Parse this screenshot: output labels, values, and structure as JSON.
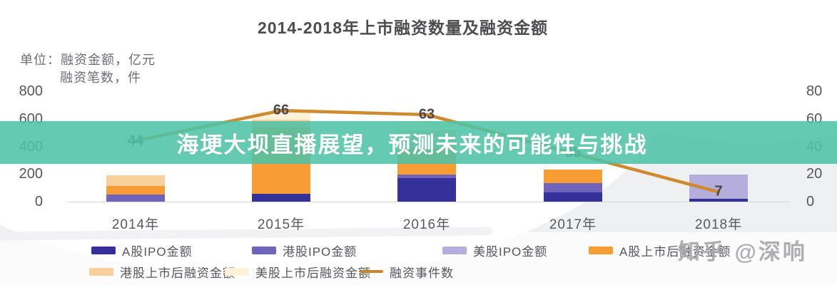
{
  "banner": {
    "text": "海埂大坝直播展望，预测未来的可能性与挑战",
    "bg_color": "#4ec3a6"
  },
  "watermark": {
    "text": "知乎 @深响"
  },
  "chart_data": {
    "type": "bar",
    "title": "2014-2018年上市融资数量及融资金额",
    "unit_line1": "单位：融资金额，亿元",
    "unit_line2": "融资笔数，件",
    "categories": [
      "2014年",
      "2015年",
      "2016年",
      "2017年",
      "2018年"
    ],
    "left_axis": {
      "ticks": [
        800,
        600,
        400,
        200,
        0
      ],
      "max": 800
    },
    "right_axis": {
      "ticks": [
        80,
        60,
        40,
        20,
        0
      ],
      "max": 80
    },
    "series": [
      {
        "name": "A股IPO金额",
        "color": "#35319b",
        "values": [
          0,
          55,
          170,
          65,
          20
        ]
      },
      {
        "name": "港股IPO金额",
        "color": "#6f63bb",
        "values": [
          50,
          0,
          25,
          70,
          0
        ]
      },
      {
        "name": "美股IPO金额",
        "color": "#b5addc",
        "values": [
          0,
          0,
          0,
          0,
          175
        ]
      },
      {
        "name": "A股上市后融资金额",
        "color": "#f79d33",
        "values": [
          65,
          480,
          190,
          95,
          0
        ]
      },
      {
        "name": "港股上市后融资金额",
        "color": "#f9cf9c",
        "values": [
          75,
          60,
          130,
          0,
          0
        ]
      },
      {
        "name": "美股上市后融资金额",
        "color": "#fbf2d9",
        "values": [
          0,
          55,
          70,
          0,
          0
        ]
      }
    ],
    "line_series": {
      "name": "融资事件数",
      "color": "#cd8a2f",
      "values": [
        44,
        66,
        63,
        35,
        7
      ]
    }
  }
}
